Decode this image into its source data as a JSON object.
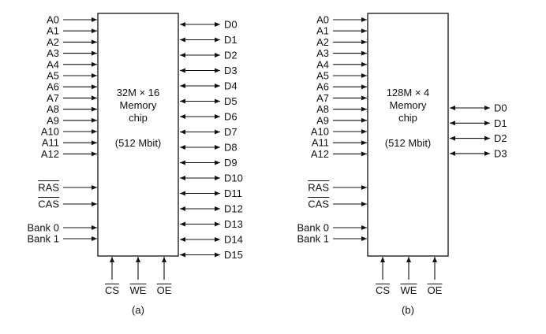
{
  "diagrams": [
    {
      "chip_label": [
        "32M × 16",
        "Memory",
        "chip",
        "",
        "(512 Mbit)"
      ],
      "address_pins": [
        "A0",
        "A1",
        "A2",
        "A3",
        "A4",
        "A5",
        "A6",
        "A7",
        "A8",
        "A9",
        "A10",
        "A11",
        "A12"
      ],
      "control_pins": [
        "RAS",
        "CAS"
      ],
      "bank_pins": [
        "Bank 0",
        "Bank 1"
      ],
      "data_pins": [
        "D0",
        "D1",
        "D2",
        "D3",
        "D4",
        "D5",
        "D6",
        "D7",
        "D8",
        "D9",
        "D10",
        "D11",
        "D12",
        "D13",
        "D14",
        "D15"
      ],
      "bottom_pins": [
        "CS",
        "WE",
        "OE"
      ],
      "caption": "(a)"
    },
    {
      "chip_label": [
        "128M × 4",
        "Memory",
        "chip",
        "",
        "(512 Mbit)"
      ],
      "address_pins": [
        "A0",
        "A1",
        "A2",
        "A3",
        "A4",
        "A5",
        "A6",
        "A7",
        "A8",
        "A9",
        "A10",
        "A11",
        "A12"
      ],
      "control_pins": [
        "RAS",
        "CAS"
      ],
      "bank_pins": [
        "Bank 0",
        "Bank 1"
      ],
      "data_pins": [
        "D0",
        "D1",
        "D2",
        "D3"
      ],
      "bottom_pins": [
        "CS",
        "WE",
        "OE"
      ],
      "caption": "(b)"
    }
  ]
}
